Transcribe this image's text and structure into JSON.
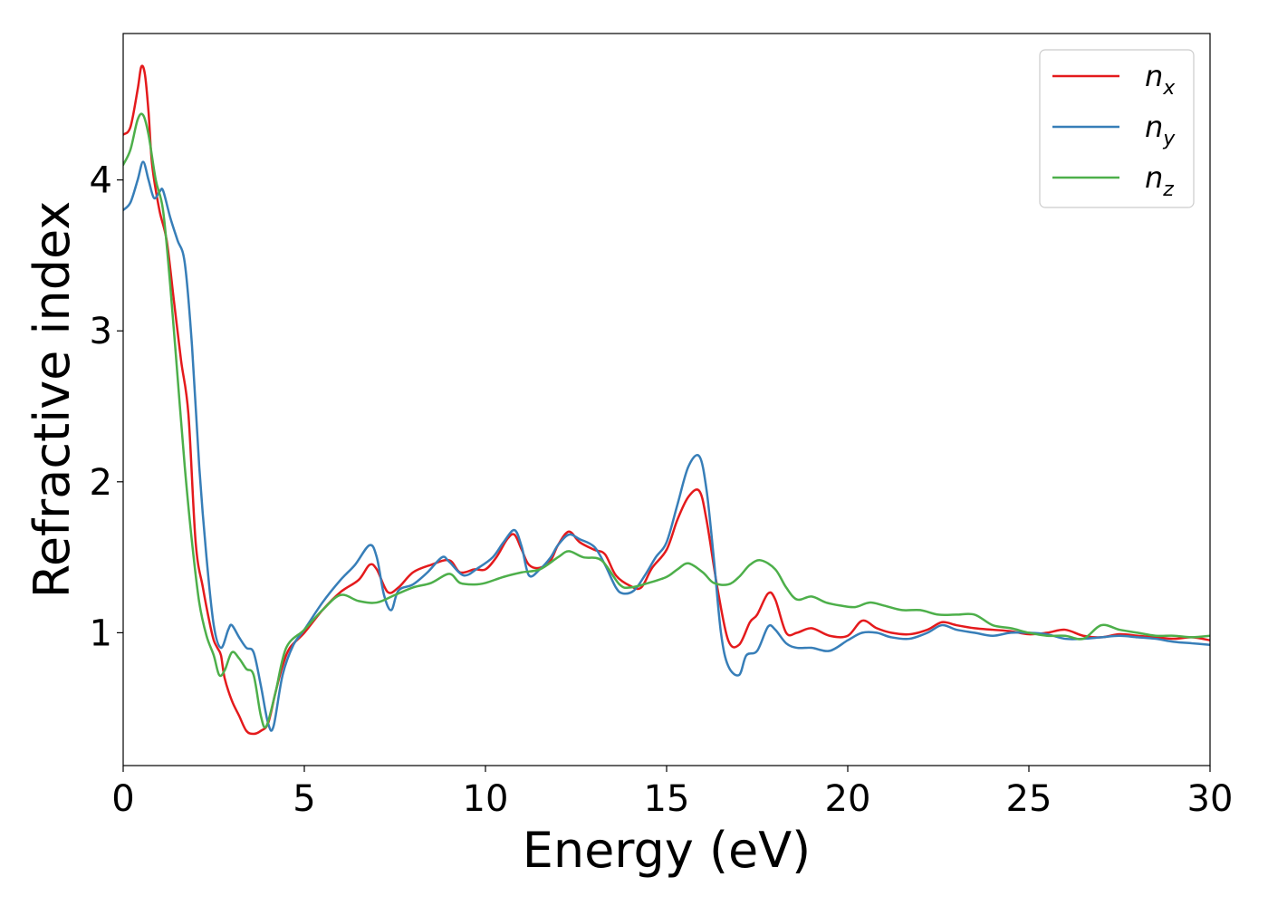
{
  "chart_data": {
    "type": "line",
    "title": "",
    "xlabel": "Energy (eV)",
    "ylabel": "Refractive index",
    "xlim": [
      0,
      30
    ],
    "ylim": [
      0.12,
      4.97
    ],
    "xticks": [
      0,
      5,
      10,
      15,
      20,
      25,
      30
    ],
    "xtick_labels": [
      "0",
      "5",
      "10",
      "15",
      "20",
      "25",
      "30"
    ],
    "yticks": [
      1,
      2,
      3,
      4
    ],
    "ytick_labels": [
      "1",
      "2",
      "3",
      "4"
    ],
    "grid": false,
    "legend": {
      "position": "top-right",
      "entries": [
        {
          "main": "n",
          "sub": "x",
          "color": "#e41a1c"
        },
        {
          "main": "n",
          "sub": "y",
          "color": "#377eb8"
        },
        {
          "main": "n",
          "sub": "z",
          "color": "#4daf4a"
        }
      ]
    },
    "series": [
      {
        "key": "nx",
        "color": "#e41a1c",
        "points": [
          [
            0,
            4.3
          ],
          [
            0.2,
            4.35
          ],
          [
            0.4,
            4.6
          ],
          [
            0.5,
            4.75
          ],
          [
            0.6,
            4.7
          ],
          [
            0.7,
            4.45
          ],
          [
            0.8,
            4.1
          ],
          [
            1.0,
            3.8
          ],
          [
            1.2,
            3.6
          ],
          [
            1.4,
            3.2
          ],
          [
            1.6,
            2.8
          ],
          [
            1.8,
            2.45
          ],
          [
            2.0,
            1.6
          ],
          [
            2.2,
            1.3
          ],
          [
            2.4,
            1.05
          ],
          [
            2.5,
            0.95
          ],
          [
            2.6,
            0.9
          ],
          [
            2.7,
            0.85
          ],
          [
            2.8,
            0.7
          ],
          [
            3.0,
            0.55
          ],
          [
            3.2,
            0.45
          ],
          [
            3.4,
            0.35
          ],
          [
            3.6,
            0.33
          ],
          [
            3.8,
            0.35
          ],
          [
            4.0,
            0.4
          ],
          [
            4.2,
            0.6
          ],
          [
            4.4,
            0.78
          ],
          [
            4.6,
            0.9
          ],
          [
            5.0,
            1.0
          ],
          [
            5.5,
            1.15
          ],
          [
            6.0,
            1.27
          ],
          [
            6.5,
            1.35
          ],
          [
            6.8,
            1.45
          ],
          [
            7.0,
            1.42
          ],
          [
            7.3,
            1.27
          ],
          [
            7.6,
            1.3
          ],
          [
            8.0,
            1.4
          ],
          [
            8.5,
            1.45
          ],
          [
            9.0,
            1.48
          ],
          [
            9.3,
            1.4
          ],
          [
            9.7,
            1.42
          ],
          [
            10.0,
            1.42
          ],
          [
            10.3,
            1.5
          ],
          [
            10.6,
            1.62
          ],
          [
            10.8,
            1.65
          ],
          [
            11.0,
            1.55
          ],
          [
            11.2,
            1.45
          ],
          [
            11.5,
            1.43
          ],
          [
            11.8,
            1.48
          ],
          [
            12.0,
            1.58
          ],
          [
            12.3,
            1.67
          ],
          [
            12.6,
            1.6
          ],
          [
            13.0,
            1.55
          ],
          [
            13.3,
            1.52
          ],
          [
            13.6,
            1.38
          ],
          [
            14.0,
            1.31
          ],
          [
            14.3,
            1.3
          ],
          [
            14.6,
            1.43
          ],
          [
            15.0,
            1.55
          ],
          [
            15.3,
            1.75
          ],
          [
            15.6,
            1.9
          ],
          [
            15.9,
            1.94
          ],
          [
            16.1,
            1.75
          ],
          [
            16.4,
            1.3
          ],
          [
            16.7,
            0.95
          ],
          [
            17.0,
            0.92
          ],
          [
            17.3,
            1.07
          ],
          [
            17.5,
            1.12
          ],
          [
            17.8,
            1.26
          ],
          [
            18.0,
            1.22
          ],
          [
            18.3,
            1.0
          ],
          [
            18.6,
            1.0
          ],
          [
            19.0,
            1.03
          ],
          [
            19.5,
            0.98
          ],
          [
            20.0,
            0.98
          ],
          [
            20.4,
            1.08
          ],
          [
            20.8,
            1.03
          ],
          [
            21.2,
            1.0
          ],
          [
            21.7,
            0.99
          ],
          [
            22.2,
            1.02
          ],
          [
            22.6,
            1.07
          ],
          [
            23.0,
            1.05
          ],
          [
            23.5,
            1.03
          ],
          [
            24.0,
            1.02
          ],
          [
            24.5,
            1.01
          ],
          [
            25.0,
            0.99
          ],
          [
            25.5,
            1.0
          ],
          [
            26.0,
            1.02
          ],
          [
            26.5,
            0.98
          ],
          [
            27.0,
            0.97
          ],
          [
            27.5,
            0.99
          ],
          [
            28.0,
            0.98
          ],
          [
            28.5,
            0.97
          ],
          [
            29.0,
            0.96
          ],
          [
            29.5,
            0.97
          ],
          [
            30.0,
            0.95
          ]
        ]
      },
      {
        "key": "ny",
        "color": "#377eb8",
        "points": [
          [
            0,
            3.8
          ],
          [
            0.2,
            3.85
          ],
          [
            0.4,
            4.0
          ],
          [
            0.55,
            4.12
          ],
          [
            0.7,
            4.0
          ],
          [
            0.85,
            3.88
          ],
          [
            1.0,
            3.92
          ],
          [
            1.1,
            3.93
          ],
          [
            1.3,
            3.75
          ],
          [
            1.5,
            3.6
          ],
          [
            1.7,
            3.45
          ],
          [
            1.9,
            2.9
          ],
          [
            2.1,
            2.1
          ],
          [
            2.3,
            1.5
          ],
          [
            2.5,
            1.05
          ],
          [
            2.7,
            0.9
          ],
          [
            2.9,
            1.02
          ],
          [
            3.0,
            1.05
          ],
          [
            3.2,
            0.97
          ],
          [
            3.4,
            0.9
          ],
          [
            3.6,
            0.87
          ],
          [
            3.8,
            0.65
          ],
          [
            4.0,
            0.4
          ],
          [
            4.15,
            0.38
          ],
          [
            4.4,
            0.72
          ],
          [
            4.7,
            0.92
          ],
          [
            5.0,
            1.02
          ],
          [
            5.5,
            1.2
          ],
          [
            6.0,
            1.35
          ],
          [
            6.4,
            1.45
          ],
          [
            6.8,
            1.58
          ],
          [
            7.0,
            1.5
          ],
          [
            7.2,
            1.25
          ],
          [
            7.4,
            1.15
          ],
          [
            7.6,
            1.28
          ],
          [
            8.0,
            1.32
          ],
          [
            8.4,
            1.4
          ],
          [
            8.8,
            1.5
          ],
          [
            9.0,
            1.47
          ],
          [
            9.4,
            1.38
          ],
          [
            9.8,
            1.43
          ],
          [
            10.2,
            1.5
          ],
          [
            10.5,
            1.6
          ],
          [
            10.8,
            1.68
          ],
          [
            11.0,
            1.57
          ],
          [
            11.2,
            1.38
          ],
          [
            11.5,
            1.42
          ],
          [
            11.8,
            1.5
          ],
          [
            12.0,
            1.58
          ],
          [
            12.3,
            1.65
          ],
          [
            12.6,
            1.62
          ],
          [
            13.0,
            1.57
          ],
          [
            13.3,
            1.45
          ],
          [
            13.6,
            1.3
          ],
          [
            13.8,
            1.26
          ],
          [
            14.1,
            1.28
          ],
          [
            14.4,
            1.38
          ],
          [
            14.7,
            1.5
          ],
          [
            15.0,
            1.6
          ],
          [
            15.3,
            1.85
          ],
          [
            15.6,
            2.1
          ],
          [
            15.9,
            2.17
          ],
          [
            16.1,
            1.95
          ],
          [
            16.3,
            1.5
          ],
          [
            16.5,
            1.0
          ],
          [
            16.7,
            0.78
          ],
          [
            17.0,
            0.72
          ],
          [
            17.2,
            0.85
          ],
          [
            17.5,
            0.88
          ],
          [
            17.8,
            1.04
          ],
          [
            18.0,
            1.02
          ],
          [
            18.3,
            0.93
          ],
          [
            18.6,
            0.9
          ],
          [
            19.0,
            0.9
          ],
          [
            19.5,
            0.88
          ],
          [
            20.0,
            0.95
          ],
          [
            20.4,
            1.0
          ],
          [
            20.8,
            1.0
          ],
          [
            21.2,
            0.97
          ],
          [
            21.7,
            0.96
          ],
          [
            22.2,
            1.0
          ],
          [
            22.6,
            1.05
          ],
          [
            23.0,
            1.02
          ],
          [
            23.5,
            1.0
          ],
          [
            24.0,
            0.98
          ],
          [
            24.5,
            1.0
          ],
          [
            25.0,
            1.0
          ],
          [
            25.5,
            0.99
          ],
          [
            26.0,
            0.96
          ],
          [
            26.5,
            0.96
          ],
          [
            27.0,
            0.97
          ],
          [
            27.5,
            0.98
          ],
          [
            28.0,
            0.97
          ],
          [
            28.5,
            0.96
          ],
          [
            29.0,
            0.94
          ],
          [
            29.5,
            0.93
          ],
          [
            30.0,
            0.92
          ]
        ]
      },
      {
        "key": "nz",
        "color": "#4daf4a",
        "points": [
          [
            0,
            4.1
          ],
          [
            0.2,
            4.2
          ],
          [
            0.4,
            4.4
          ],
          [
            0.55,
            4.43
          ],
          [
            0.7,
            4.3
          ],
          [
            0.9,
            4.0
          ],
          [
            1.1,
            3.8
          ],
          [
            1.3,
            3.3
          ],
          [
            1.5,
            2.7
          ],
          [
            1.7,
            2.1
          ],
          [
            1.9,
            1.6
          ],
          [
            2.1,
            1.2
          ],
          [
            2.3,
            0.98
          ],
          [
            2.5,
            0.85
          ],
          [
            2.65,
            0.72
          ],
          [
            2.8,
            0.75
          ],
          [
            3.0,
            0.87
          ],
          [
            3.2,
            0.83
          ],
          [
            3.4,
            0.76
          ],
          [
            3.6,
            0.72
          ],
          [
            3.8,
            0.45
          ],
          [
            3.95,
            0.38
          ],
          [
            4.2,
            0.6
          ],
          [
            4.5,
            0.9
          ],
          [
            5.0,
            1.02
          ],
          [
            5.5,
            1.15
          ],
          [
            6.0,
            1.25
          ],
          [
            6.5,
            1.21
          ],
          [
            7.0,
            1.2
          ],
          [
            7.5,
            1.25
          ],
          [
            8.0,
            1.3
          ],
          [
            8.5,
            1.33
          ],
          [
            9.0,
            1.39
          ],
          [
            9.3,
            1.33
          ],
          [
            9.7,
            1.32
          ],
          [
            10.0,
            1.33
          ],
          [
            10.5,
            1.37
          ],
          [
            11.0,
            1.4
          ],
          [
            11.5,
            1.42
          ],
          [
            12.0,
            1.5
          ],
          [
            12.3,
            1.54
          ],
          [
            12.7,
            1.5
          ],
          [
            13.2,
            1.48
          ],
          [
            13.7,
            1.32
          ],
          [
            14.0,
            1.3
          ],
          [
            14.5,
            1.33
          ],
          [
            15.0,
            1.37
          ],
          [
            15.3,
            1.42
          ],
          [
            15.6,
            1.46
          ],
          [
            16.0,
            1.4
          ],
          [
            16.3,
            1.33
          ],
          [
            16.7,
            1.32
          ],
          [
            17.0,
            1.37
          ],
          [
            17.3,
            1.45
          ],
          [
            17.6,
            1.48
          ],
          [
            18.0,
            1.42
          ],
          [
            18.3,
            1.3
          ],
          [
            18.6,
            1.22
          ],
          [
            19.0,
            1.24
          ],
          [
            19.4,
            1.2
          ],
          [
            19.8,
            1.18
          ],
          [
            20.2,
            1.17
          ],
          [
            20.6,
            1.2
          ],
          [
            21.0,
            1.18
          ],
          [
            21.5,
            1.15
          ],
          [
            22.0,
            1.15
          ],
          [
            22.5,
            1.12
          ],
          [
            23.0,
            1.12
          ],
          [
            23.5,
            1.12
          ],
          [
            24.0,
            1.05
          ],
          [
            24.5,
            1.03
          ],
          [
            25.0,
            1.0
          ],
          [
            25.5,
            0.98
          ],
          [
            26.0,
            0.98
          ],
          [
            26.5,
            0.96
          ],
          [
            27.0,
            1.05
          ],
          [
            27.5,
            1.02
          ],
          [
            28.0,
            1.0
          ],
          [
            28.5,
            0.98
          ],
          [
            29.0,
            0.98
          ],
          [
            29.5,
            0.97
          ],
          [
            30.0,
            0.98
          ]
        ]
      }
    ]
  }
}
